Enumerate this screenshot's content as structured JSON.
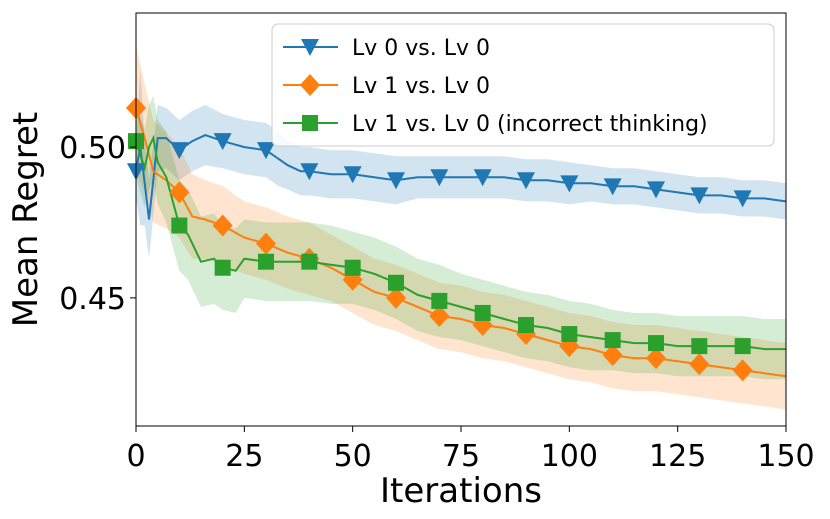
{
  "chart_data": {
    "type": "line",
    "xlabel": "Iterations",
    "ylabel": "Mean Regret",
    "xlim": [
      0,
      150
    ],
    "ylim": [
      0.4075,
      0.5445
    ],
    "xticks": [
      0,
      25,
      50,
      75,
      100,
      125,
      150
    ],
    "xtick_labels": [
      "0",
      "25",
      "50",
      "75",
      "100",
      "125",
      "150"
    ],
    "yticks": [
      0.45,
      0.5
    ],
    "ytick_labels": [
      "0.45",
      "0.50"
    ],
    "legend_position": "top-right",
    "marker_every": 10,
    "series": [
      {
        "name": "Lv 0 vs. Lv 0",
        "color": "#1f77b4",
        "marker": "triangle-down",
        "points": [
          [
            0,
            0.492
          ],
          [
            1,
            0.5
          ],
          [
            2,
            0.488
          ],
          [
            3,
            0.476
          ],
          [
            4,
            0.489
          ],
          [
            5,
            0.503
          ],
          [
            7,
            0.503
          ],
          [
            10,
            0.499
          ],
          [
            13,
            0.502
          ],
          [
            16,
            0.504
          ],
          [
            20,
            0.502
          ],
          [
            25,
            0.5
          ],
          [
            30,
            0.499
          ],
          [
            33,
            0.496
          ],
          [
            35,
            0.494
          ],
          [
            38,
            0.492
          ],
          [
            40,
            0.492
          ],
          [
            45,
            0.491
          ],
          [
            50,
            0.491
          ],
          [
            55,
            0.49
          ],
          [
            60,
            0.489
          ],
          [
            65,
            0.49
          ],
          [
            70,
            0.49
          ],
          [
            75,
            0.49
          ],
          [
            80,
            0.49
          ],
          [
            85,
            0.49
          ],
          [
            90,
            0.489
          ],
          [
            95,
            0.489
          ],
          [
            100,
            0.488
          ],
          [
            105,
            0.488
          ],
          [
            110,
            0.487
          ],
          [
            115,
            0.487
          ],
          [
            120,
            0.486
          ],
          [
            125,
            0.485
          ],
          [
            130,
            0.484
          ],
          [
            135,
            0.484
          ],
          [
            140,
            0.483
          ],
          [
            145,
            0.483
          ],
          [
            150,
            0.482
          ]
        ],
        "band": [
          0.009,
          0.026,
          0.014,
          0.013,
          0.012,
          0.011,
          0.01,
          0.01,
          0.01,
          0.01,
          0.009,
          0.009,
          0.009,
          0.009,
          0.008,
          0.008,
          0.008,
          0.008,
          0.008,
          0.008,
          0.008,
          0.007,
          0.007,
          0.007,
          0.007,
          0.007,
          0.007,
          0.007,
          0.007,
          0.006,
          0.006,
          0.006,
          0.006,
          0.006,
          0.006,
          0.006,
          0.006,
          0.006,
          0.006
        ]
      },
      {
        "name": "Lv 1 vs. Lv 0",
        "color": "#ff7f0e",
        "marker": "diamond",
        "points": [
          [
            0,
            0.513
          ],
          [
            2,
            0.503
          ],
          [
            4,
            0.492
          ],
          [
            7,
            0.489
          ],
          [
            10,
            0.485
          ],
          [
            13,
            0.477
          ],
          [
            16,
            0.476
          ],
          [
            20,
            0.474
          ],
          [
            25,
            0.47
          ],
          [
            30,
            0.468
          ],
          [
            35,
            0.465
          ],
          [
            40,
            0.463
          ],
          [
            45,
            0.46
          ],
          [
            50,
            0.456
          ],
          [
            55,
            0.452
          ],
          [
            60,
            0.45
          ],
          [
            65,
            0.447
          ],
          [
            70,
            0.444
          ],
          [
            75,
            0.443
          ],
          [
            80,
            0.441
          ],
          [
            85,
            0.44
          ],
          [
            90,
            0.438
          ],
          [
            95,
            0.436
          ],
          [
            100,
            0.434
          ],
          [
            105,
            0.433
          ],
          [
            110,
            0.431
          ],
          [
            115,
            0.43
          ],
          [
            120,
            0.43
          ],
          [
            125,
            0.429
          ],
          [
            130,
            0.428
          ],
          [
            135,
            0.427
          ],
          [
            140,
            0.426
          ],
          [
            145,
            0.425
          ],
          [
            150,
            0.424
          ]
        ],
        "band": [
          0.021,
          0.018,
          0.017,
          0.016,
          0.015,
          0.014,
          0.013,
          0.013,
          0.012,
          0.012,
          0.012,
          0.012,
          0.011,
          0.011,
          0.011,
          0.011,
          0.011,
          0.011,
          0.011,
          0.011,
          0.011,
          0.011,
          0.011,
          0.011,
          0.011,
          0.011,
          0.011,
          0.011,
          0.011,
          0.011,
          0.011,
          0.011,
          0.011,
          0.011
        ]
      },
      {
        "name": "Lv 1 vs. Lv 0 (incorrect thinking)",
        "color": "#2ca02c",
        "marker": "square",
        "points": [
          [
            0,
            0.502
          ],
          [
            2,
            0.493
          ],
          [
            3,
            0.5
          ],
          [
            4,
            0.503
          ],
          [
            5,
            0.495
          ],
          [
            7,
            0.49
          ],
          [
            10,
            0.474
          ],
          [
            12,
            0.471
          ],
          [
            15,
            0.462
          ],
          [
            18,
            0.463
          ],
          [
            20,
            0.46
          ],
          [
            23,
            0.459
          ],
          [
            25,
            0.463
          ],
          [
            30,
            0.462
          ],
          [
            35,
            0.462
          ],
          [
            40,
            0.462
          ],
          [
            45,
            0.461
          ],
          [
            50,
            0.46
          ],
          [
            55,
            0.458
          ],
          [
            60,
            0.455
          ],
          [
            65,
            0.451
          ],
          [
            70,
            0.449
          ],
          [
            75,
            0.447
          ],
          [
            80,
            0.445
          ],
          [
            85,
            0.443
          ],
          [
            90,
            0.441
          ],
          [
            95,
            0.44
          ],
          [
            100,
            0.438
          ],
          [
            105,
            0.437
          ],
          [
            110,
            0.436
          ],
          [
            115,
            0.435
          ],
          [
            120,
            0.435
          ],
          [
            125,
            0.434
          ],
          [
            130,
            0.434
          ],
          [
            135,
            0.434
          ],
          [
            140,
            0.434
          ],
          [
            145,
            0.433
          ],
          [
            150,
            0.433
          ]
        ],
        "band": [
          0.012,
          0.013,
          0.014,
          0.014,
          0.014,
          0.015,
          0.015,
          0.015,
          0.015,
          0.015,
          0.014,
          0.014,
          0.013,
          0.013,
          0.013,
          0.013,
          0.013,
          0.012,
          0.012,
          0.012,
          0.012,
          0.012,
          0.011,
          0.011,
          0.011,
          0.011,
          0.011,
          0.011,
          0.011,
          0.01,
          0.01,
          0.01,
          0.01,
          0.01,
          0.01,
          0.01,
          0.01,
          0.01
        ]
      }
    ]
  }
}
